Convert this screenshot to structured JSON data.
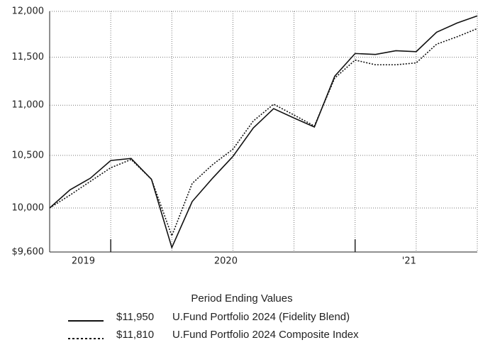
{
  "chart_data": {
    "type": "line",
    "categories": [
      null,
      null,
      "2019",
      null,
      null,
      null,
      null,
      null,
      null,
      "2020",
      null,
      null,
      null,
      null,
      null,
      null,
      null,
      null,
      "'21",
      null,
      null,
      null
    ],
    "series": [
      {
        "name": "U.Fund Portfolio 2024 (Fidelity Blend)",
        "color": "#111111",
        "dash": "solid",
        "end_label": "$11,950",
        "values": [
          10000,
          10170,
          10280,
          10450,
          10470,
          10270,
          9640,
          10060,
          10280,
          10490,
          10770,
          10965,
          10870,
          10780,
          11300,
          11540,
          11530,
          11570,
          11560,
          11770,
          11870,
          11950
        ]
      },
      {
        "name": "U.Fund Portfolio 2024 Composite Index",
        "color": "#111111",
        "dash": "dotted",
        "end_label": "$11,810",
        "values": [
          10000,
          10120,
          10250,
          10380,
          10460,
          10270,
          9745,
          10230,
          10410,
          10560,
          10840,
          11010,
          10900,
          10790,
          11280,
          11470,
          11420,
          11420,
          11440,
          11640,
          11720,
          11810
        ]
      }
    ],
    "ylim": [
      9600,
      12000
    ],
    "yticks": [
      {
        "value": 9600,
        "label": "$9,600"
      },
      {
        "value": 10000,
        "label": "10,000"
      },
      {
        "value": 10500,
        "label": "10,500"
      },
      {
        "value": 11000,
        "label": "11,000"
      },
      {
        "value": 11500,
        "label": "11,500"
      },
      {
        "value": 12000,
        "label": "12,000"
      }
    ],
    "log_scale": true,
    "grid": true,
    "legend_title": "Period Ending Values"
  }
}
